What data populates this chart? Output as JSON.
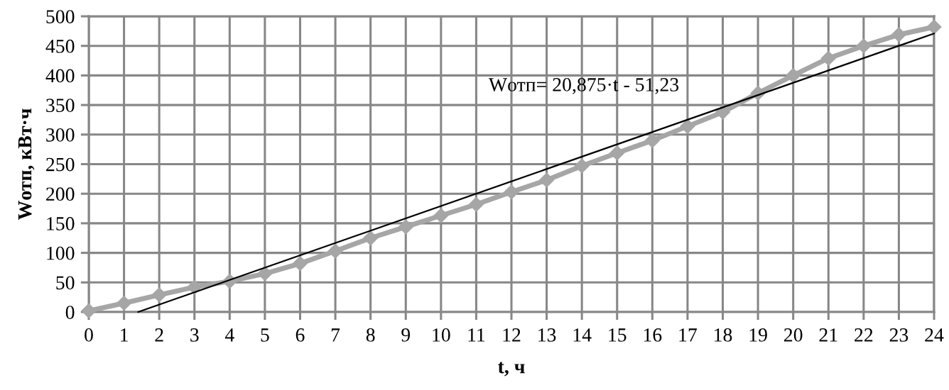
{
  "chart_data": {
    "type": "line",
    "xlabel": "t, ч",
    "ylabel": "Wотп, кВт·ч",
    "xlim": [
      0,
      24
    ],
    "ylim": [
      0,
      500
    ],
    "xticks": [
      0,
      1,
      2,
      3,
      4,
      5,
      6,
      7,
      8,
      9,
      10,
      11,
      12,
      13,
      14,
      15,
      16,
      17,
      18,
      19,
      20,
      21,
      22,
      23,
      24
    ],
    "yticks": [
      0,
      50,
      100,
      150,
      200,
      250,
      300,
      350,
      400,
      450,
      500
    ],
    "grid": true,
    "annotations": [
      "Wотп= 20,875·t - 51,23"
    ],
    "series": [
      {
        "color": "#a6a6a6",
        "marker": "diamond",
        "line_style": "solid",
        "x": [
          0,
          1,
          2,
          3,
          4,
          5,
          6,
          7,
          8,
          9,
          10,
          11,
          12,
          13,
          14,
          15,
          16,
          17,
          18,
          19,
          20,
          21,
          22,
          23,
          24
        ],
        "values": [
          2,
          15,
          29,
          42,
          52,
          65,
          82,
          103,
          125,
          144,
          163,
          182,
          203,
          223,
          247,
          269,
          290,
          314,
          338,
          370,
          400,
          429,
          450,
          469,
          482
        ]
      },
      {
        "type": "line",
        "color": "#000000",
        "marker": "none",
        "line_style": "solid",
        "x": [
          1.4,
          24
        ],
        "values": [
          0,
          471
        ]
      }
    ]
  }
}
